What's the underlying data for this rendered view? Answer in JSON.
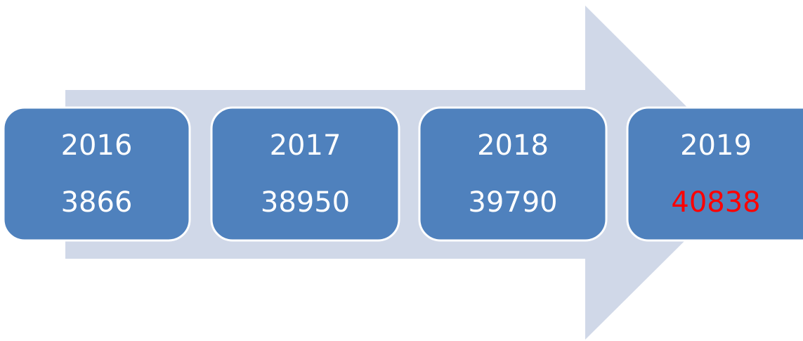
{
  "nodes": [
    {
      "year": "2016",
      "value": 3866,
      "value_color": "#ffffff"
    },
    {
      "year": "2017",
      "value": 38950,
      "value_color": "#ffffff"
    },
    {
      "year": "2018",
      "value": 39790,
      "value_color": "#ffffff"
    },
    {
      "year": "2019",
      "value": 40838,
      "value_color": "#ff0000"
    }
  ]
}
